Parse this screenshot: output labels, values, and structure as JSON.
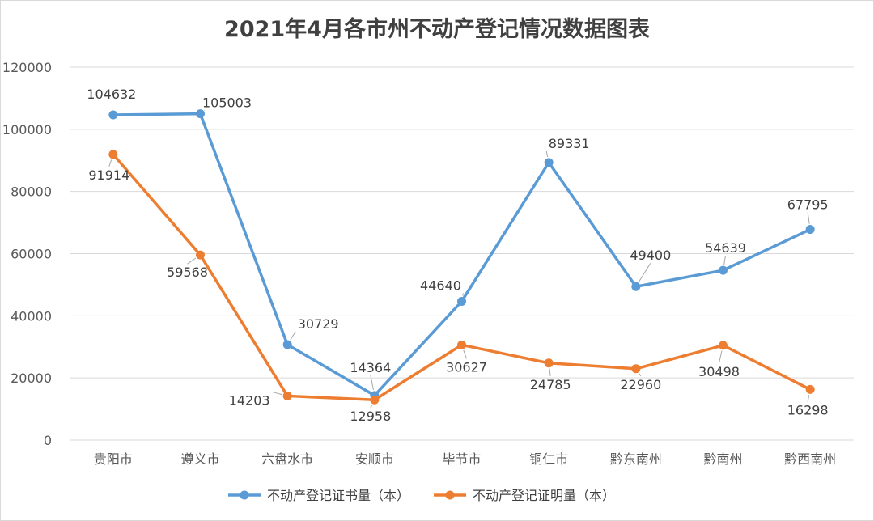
{
  "chart_data": {
    "type": "line",
    "title": "2021年4月各市州不动产登记情况数据图表",
    "xlabel": "",
    "ylabel": "",
    "categories": [
      "贵阳市",
      "遵义市",
      "六盘水市",
      "安顺市",
      "毕节市",
      "铜仁市",
      "黔东南州",
      "黔南州",
      "黔西南州"
    ],
    "ylim": [
      0,
      120000
    ],
    "yticks": [
      0,
      20000,
      40000,
      60000,
      80000,
      100000,
      120000
    ],
    "grid": true,
    "legend": "bottom",
    "series": [
      {
        "name": "不动产登记证书量（本）",
        "color": "#5b9bd5",
        "values": [
          104632,
          105003,
          30729,
          14364,
          44640,
          89331,
          49400,
          54639,
          67795
        ],
        "labels": [
          "104632",
          "105003",
          "30729",
          "14364",
          "44640",
          "89331",
          "49400",
          "54639",
          "67795"
        ]
      },
      {
        "name": "不动产登记证明量（本）",
        "color": "#ed7d31",
        "values": [
          91914,
          59568,
          14203,
          12958,
          30627,
          24785,
          22960,
          30498,
          16298
        ],
        "labels": [
          "91914",
          "59568",
          "14203",
          "12958",
          "30627",
          "24785",
          "22960",
          "30498",
          "16298"
        ]
      }
    ]
  }
}
